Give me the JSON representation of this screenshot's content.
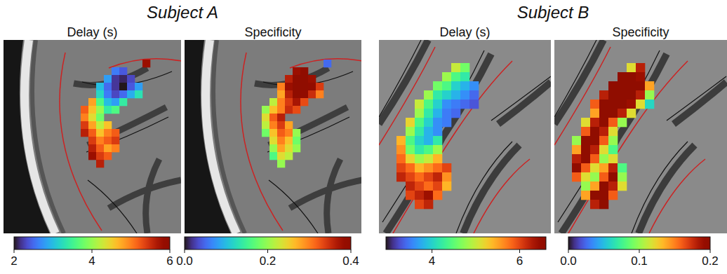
{
  "groups": [
    {
      "title": "Subject A"
    },
    {
      "title": "Subject B"
    }
  ],
  "chart_data": [
    {
      "type": "heatmap",
      "title": "Delay (s)",
      "cells": [
        [
          null,
          null,
          null,
          null,
          null,
          null,
          null,
          null,
          5.8,
          null
        ],
        [
          null,
          null,
          null,
          null,
          2.6,
          2.4,
          null,
          null,
          null,
          null
        ],
        [
          null,
          null,
          null,
          2.8,
          2.2,
          2.1,
          2.3,
          null,
          null,
          null
        ],
        [
          null,
          null,
          3.0,
          2.5,
          2.2,
          2.0,
          2.4,
          2.8,
          null,
          null
        ],
        [
          null,
          null,
          3.2,
          2.6,
          2.3,
          2.5,
          2.9,
          3.3,
          null,
          null
        ],
        [
          null,
          4.8,
          3.6,
          3.0,
          2.8,
          3.4,
          null,
          null,
          null,
          null
        ],
        [
          5.2,
          4.6,
          4.0,
          3.4,
          3.6,
          null,
          null,
          null,
          null,
          null
        ],
        [
          5.0,
          4.4,
          3.8,
          null,
          null,
          null,
          null,
          null,
          null,
          null
        ],
        [
          5.4,
          4.8,
          4.2,
          4.6,
          null,
          null,
          null,
          null,
          null,
          null
        ],
        [
          5.6,
          5.2,
          4.6,
          5.0,
          5.2,
          null,
          null,
          null,
          null,
          null
        ],
        [
          null,
          5.4,
          5.0,
          5.2,
          5.4,
          null,
          null,
          null,
          null,
          null
        ],
        [
          null,
          5.6,
          5.2,
          4.8,
          5.0,
          null,
          null,
          null,
          null,
          null
        ],
        [
          null,
          5.8,
          5.4,
          5.2,
          null,
          null,
          null,
          null,
          null,
          null
        ],
        [
          null,
          null,
          5.6,
          null,
          null,
          null,
          null,
          null,
          null,
          null
        ]
      ],
      "colorbar_range": [
        2,
        6
      ],
      "colorbar_ticks": [
        2,
        4,
        6
      ]
    },
    {
      "type": "heatmap",
      "title": "Specificity",
      "cells": [
        [
          null,
          null,
          null,
          null,
          null,
          null,
          null,
          null,
          0.05,
          null
        ],
        [
          null,
          null,
          null,
          null,
          0.38,
          0.4,
          null,
          null,
          null,
          null
        ],
        [
          null,
          null,
          null,
          0.36,
          0.4,
          0.4,
          0.38,
          null,
          null,
          null
        ],
        [
          null,
          null,
          0.3,
          0.38,
          0.4,
          0.4,
          0.39,
          0.34,
          null,
          null
        ],
        [
          null,
          null,
          0.28,
          0.36,
          0.4,
          0.39,
          0.35,
          0.3,
          null,
          null
        ],
        [
          null,
          0.22,
          0.3,
          0.34,
          0.37,
          0.33,
          null,
          null,
          null,
          null
        ],
        [
          0.2,
          0.26,
          0.3,
          0.35,
          0.33,
          null,
          null,
          null,
          null,
          null
        ],
        [
          0.24,
          0.32,
          0.36,
          null,
          null,
          null,
          null,
          null,
          null,
          null
        ],
        [
          0.22,
          0.3,
          0.34,
          0.28,
          null,
          null,
          null,
          null,
          null,
          null
        ],
        [
          0.18,
          0.26,
          0.32,
          0.3,
          0.2,
          null,
          null,
          null,
          null,
          null
        ],
        [
          null,
          0.24,
          0.3,
          0.26,
          0.18,
          null,
          null,
          null,
          null,
          null
        ],
        [
          null,
          0.2,
          0.28,
          0.24,
          0.2,
          null,
          null,
          null,
          null,
          null
        ],
        [
          null,
          0.16,
          0.24,
          0.22,
          null,
          null,
          null,
          null,
          null,
          null
        ],
        [
          null,
          null,
          0.2,
          null,
          null,
          null,
          null,
          null,
          null,
          null
        ]
      ],
      "colorbar_range": [
        0,
        0.4
      ],
      "colorbar_ticks": [
        {
          "value": 0,
          "label": "0.0"
        },
        0.2,
        0.4
      ]
    },
    {
      "type": "heatmap",
      "title": "Delay (s)",
      "cells": [
        [
          null,
          null,
          null,
          null,
          null,
          null,
          5.0,
          4.6,
          null,
          null
        ],
        [
          null,
          null,
          null,
          null,
          null,
          4.8,
          4.4,
          4.2,
          null,
          null
        ],
        [
          null,
          null,
          null,
          null,
          4.6,
          4.4,
          4.0,
          3.8,
          3.6,
          null
        ],
        [
          null,
          null,
          null,
          4.8,
          4.2,
          4.0,
          3.8,
          3.6,
          3.4,
          null
        ],
        [
          null,
          null,
          5.0,
          4.4,
          4.0,
          3.6,
          3.5,
          3.4,
          3.3,
          null
        ],
        [
          null,
          null,
          4.8,
          4.2,
          3.8,
          3.5,
          3.4,
          null,
          null,
          null
        ],
        [
          null,
          5.2,
          4.4,
          4.0,
          3.6,
          3.5,
          null,
          null,
          null,
          null
        ],
        [
          null,
          4.8,
          4.2,
          3.8,
          3.6,
          null,
          null,
          null,
          null,
          null
        ],
        [
          5.4,
          4.4,
          4.0,
          3.8,
          4.2,
          null,
          null,
          null,
          null,
          null
        ],
        [
          5.6,
          4.6,
          4.2,
          4.4,
          4.8,
          null,
          null,
          null,
          null,
          null
        ],
        [
          5.8,
          5.2,
          4.8,
          5.0,
          5.4,
          null,
          null,
          null,
          null,
          null
        ],
        [
          6.0,
          5.8,
          5.4,
          5.6,
          5.8,
          6.0,
          null,
          null,
          null,
          null
        ],
        [
          6.2,
          6.0,
          5.8,
          6.0,
          6.2,
          5.6,
          null,
          null,
          null,
          null
        ],
        [
          null,
          6.2,
          6.0,
          5.8,
          6.0,
          5.4,
          null,
          null,
          null,
          null
        ],
        [
          null,
          6.0,
          6.2,
          6.4,
          5.8,
          null,
          null,
          null,
          null,
          null
        ],
        [
          null,
          null,
          6.0,
          6.2,
          null,
          null,
          null,
          null,
          null,
          null
        ]
      ],
      "colorbar_range": [
        2.95,
        6.6
      ],
      "colorbar_ticks": [
        4,
        6
      ]
    },
    {
      "type": "heatmap",
      "title": "Specificity",
      "cells": [
        [
          null,
          null,
          null,
          null,
          null,
          null,
          0.12,
          0.18,
          null,
          null
        ],
        [
          null,
          null,
          null,
          null,
          null,
          0.2,
          0.2,
          0.19,
          null,
          null
        ],
        [
          null,
          null,
          null,
          null,
          0.2,
          0.2,
          0.2,
          0.2,
          0.14,
          null
        ],
        [
          null,
          null,
          null,
          0.18,
          0.2,
          0.2,
          0.2,
          0.18,
          0.1,
          null
        ],
        [
          null,
          null,
          0.16,
          0.2,
          0.2,
          0.2,
          0.19,
          0.12,
          0.06,
          null
        ],
        [
          null,
          null,
          0.14,
          0.2,
          0.2,
          0.18,
          0.12,
          null,
          null,
          null
        ],
        [
          null,
          0.12,
          0.18,
          0.2,
          0.16,
          0.1,
          null,
          null,
          null,
          null
        ],
        [
          null,
          0.16,
          0.2,
          0.18,
          0.12,
          null,
          null,
          null,
          null,
          null
        ],
        [
          0.1,
          0.2,
          0.2,
          0.16,
          0.1,
          null,
          null,
          null,
          null,
          null
        ],
        [
          0.14,
          0.2,
          0.18,
          0.12,
          0.08,
          null,
          null,
          null,
          null,
          null
        ],
        [
          0.18,
          0.2,
          0.16,
          0.1,
          0.12,
          null,
          null,
          null,
          null,
          null
        ],
        [
          0.2,
          0.16,
          0.12,
          0.14,
          0.18,
          0.08,
          null,
          null,
          null,
          null
        ],
        [
          0.16,
          0.12,
          0.1,
          0.16,
          0.2,
          0.1,
          null,
          null,
          null,
          null
        ],
        [
          null,
          0.1,
          0.14,
          0.2,
          0.18,
          0.12,
          null,
          null,
          null,
          null
        ],
        [
          null,
          0.14,
          0.2,
          0.2,
          0.16,
          null,
          null,
          null,
          null,
          null
        ],
        [
          null,
          null,
          0.18,
          0.2,
          null,
          null,
          null,
          null,
          null,
          null
        ]
      ],
      "colorbar_range": [
        0,
        0.2
      ],
      "colorbar_ticks": [
        {
          "value": 0,
          "label": "0.0"
        },
        0.1,
        0.2
      ]
    }
  ]
}
